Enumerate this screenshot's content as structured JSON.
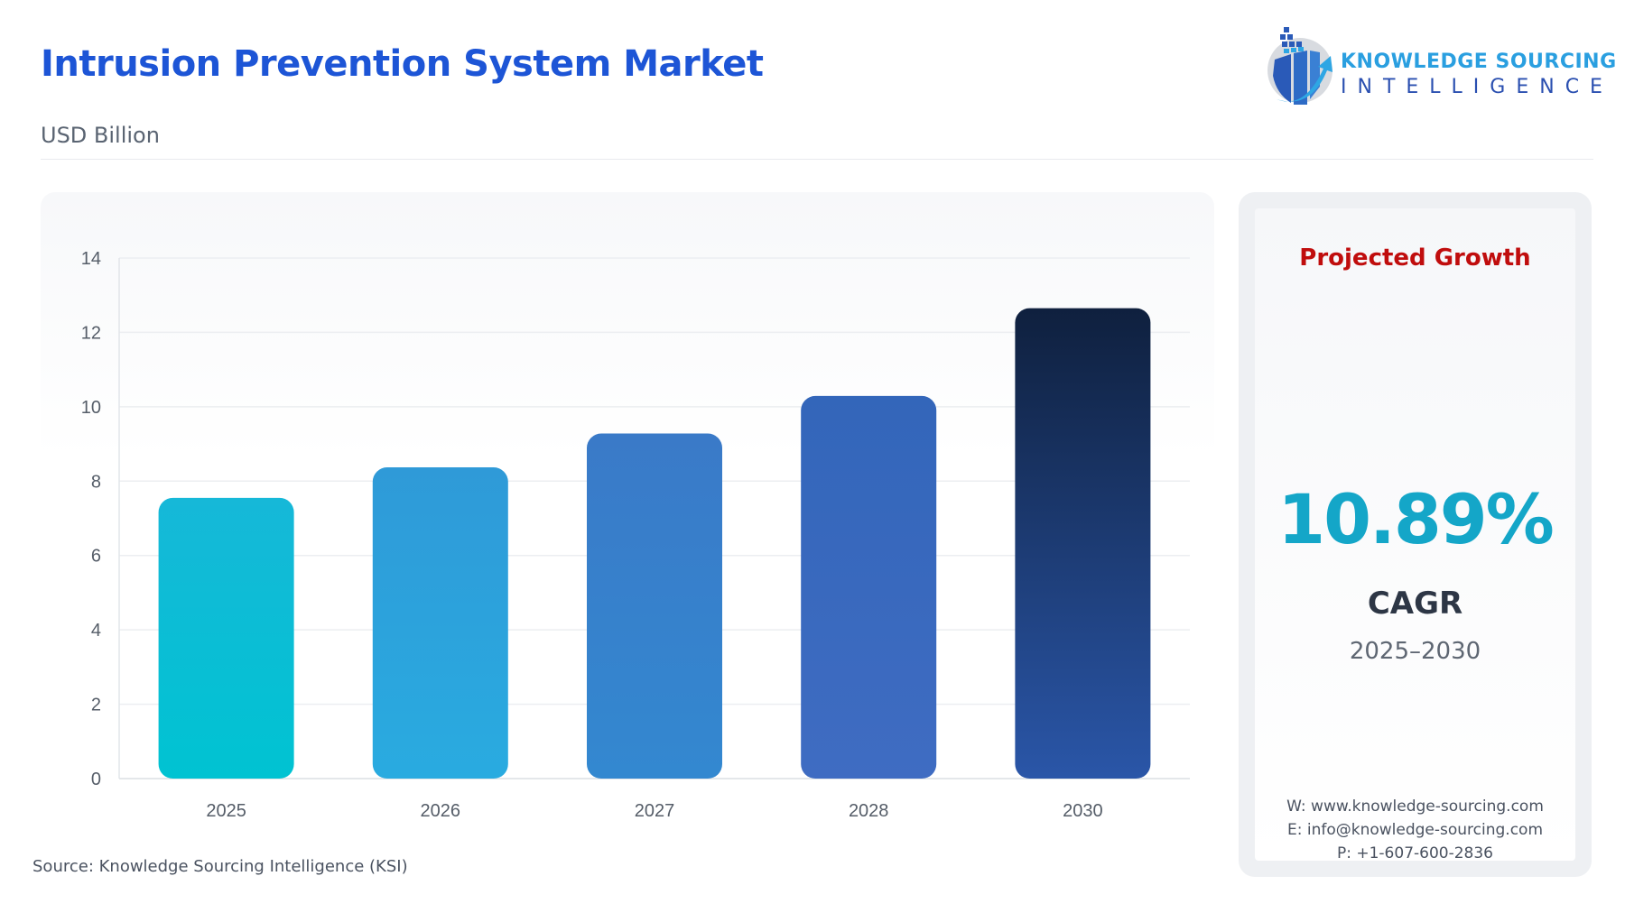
{
  "header": {
    "title": "Intrusion Prevention System Market",
    "subtitle": "USD Billion"
  },
  "logo": {
    "line1": "KNOWLEDGE SOURCING",
    "line2": "INTELLIGENCE"
  },
  "chart_data": {
    "type": "bar",
    "categories": [
      "2025",
      "2026",
      "2027",
      "2028",
      "2030"
    ],
    "values": [
      7.55,
      8.37,
      9.28,
      10.29,
      12.65
    ],
    "ylabel": "USD Billion",
    "ylim": [
      0,
      14
    ],
    "yticks": [
      0,
      2,
      4,
      6,
      8,
      10,
      12,
      14
    ],
    "grid": true,
    "colors_top": [
      "#16b8d8",
      "#2f9ad8",
      "#3a7ac8",
      "#3366ba",
      "#0f203e"
    ],
    "colors_bottom": [
      "#00c3d2",
      "#29abe0",
      "#3388d0",
      "#3f6cc2",
      "#2a56a8"
    ]
  },
  "side": {
    "heading": "Projected Growth",
    "cagr_value": "10.89%",
    "cagr_label": "CAGR",
    "period": "2025–2030",
    "contact": [
      "W: www.knowledge-sourcing.com",
      "E: info@knowledge-sourcing.com",
      "P: +1-607-600-2836"
    ]
  },
  "footer": {
    "source": "Source: Knowledge Sourcing Intelligence (KSI)"
  }
}
